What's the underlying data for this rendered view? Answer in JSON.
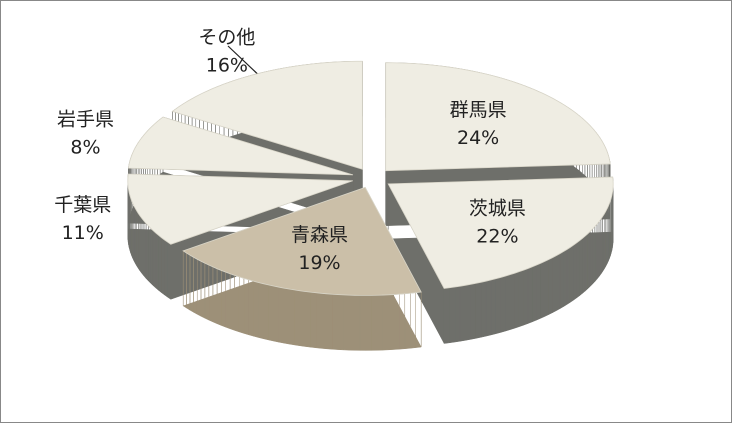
{
  "chart_data": {
    "type": "pie3d",
    "categories": [
      "群馬県",
      "茨城県",
      "青森県",
      "千葉県",
      "岩手県",
      "その他"
    ],
    "values": [
      24,
      22,
      19,
      11,
      8,
      16
    ],
    "value_labels": [
      "24%",
      "22%",
      "19%",
      "11%",
      "8%",
      "16%"
    ],
    "colors": [
      "#efede3",
      "#efede3",
      "#cbbfa8",
      "#efede3",
      "#efede3",
      "#efede3"
    ]
  }
}
